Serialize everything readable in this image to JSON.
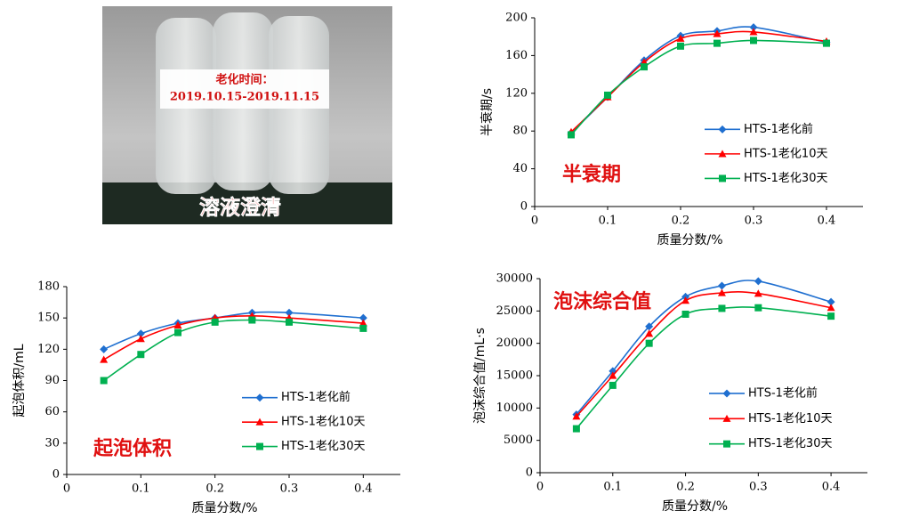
{
  "photo": {
    "label_title": "老化时间：",
    "label_dates": "2019.10.15-2019.11.15",
    "caption": "溶液澄清"
  },
  "chart_data": [
    {
      "type": "line",
      "annotation": "半衰期",
      "x_label": "质量分数/%",
      "y_label": "半衰期/s",
      "x": [
        0.05,
        0.1,
        0.15,
        0.2,
        0.25,
        0.3,
        0.4
      ],
      "xlim": [
        0,
        0.45
      ],
      "xticks": [
        0,
        0.1,
        0.2,
        0.3,
        0.4
      ],
      "ylim": [
        0,
        200
      ],
      "yticks": [
        0,
        40,
        80,
        120,
        160,
        200
      ],
      "grid": false,
      "legend": "lower right",
      "series": [
        {
          "name": "HTS-1老化前",
          "color": "#1f6fd0",
          "marker": "diamond",
          "values": [
            78,
            116,
            155,
            181,
            186,
            190,
            174
          ]
        },
        {
          "name": "HTS-1老化10天",
          "color": "#ff0000",
          "marker": "triangle",
          "values": [
            79,
            116,
            153,
            178,
            183,
            185,
            175
          ]
        },
        {
          "name": "HTS-1老化30天",
          "color": "#00b050",
          "marker": "square",
          "values": [
            76,
            118,
            148,
            170,
            173,
            176,
            173
          ]
        }
      ]
    },
    {
      "type": "line",
      "annotation": "起泡体积",
      "x_label": "质量分数/%",
      "y_label": "起泡体积/mL",
      "x": [
        0.05,
        0.1,
        0.15,
        0.2,
        0.25,
        0.3,
        0.4
      ],
      "xlim": [
        0,
        0.45
      ],
      "xticks": [
        0,
        0.1,
        0.2,
        0.3,
        0.4
      ],
      "ylim": [
        0,
        180
      ],
      "yticks": [
        0,
        30,
        60,
        90,
        120,
        150,
        180
      ],
      "grid": false,
      "legend": "lower right",
      "series": [
        {
          "name": "HTS-1老化前",
          "color": "#1f6fd0",
          "marker": "diamond",
          "values": [
            120,
            135,
            145,
            150,
            155,
            155,
            150
          ]
        },
        {
          "name": "HTS-1老化10天",
          "color": "#ff0000",
          "marker": "triangle",
          "values": [
            110,
            130,
            143,
            150,
            152,
            150,
            145
          ]
        },
        {
          "name": "HTS-1老化30天",
          "color": "#00b050",
          "marker": "square",
          "values": [
            90,
            115,
            136,
            146,
            148,
            146,
            140
          ]
        }
      ]
    },
    {
      "type": "line",
      "annotation": "泡沫综合值",
      "x_label": "质量分数/%",
      "y_label": "泡沫综合值/mL·s",
      "x": [
        0.05,
        0.1,
        0.15,
        0.2,
        0.25,
        0.3,
        0.4
      ],
      "xlim": [
        0,
        0.45
      ],
      "xticks": [
        0,
        0.1,
        0.2,
        0.3,
        0.4
      ],
      "ylim": [
        0,
        30000
      ],
      "yticks": [
        0,
        5000,
        10000,
        15000,
        20000,
        25000,
        30000
      ],
      "grid": false,
      "legend": "lower right",
      "series": [
        {
          "name": "HTS-1老化前",
          "color": "#1f6fd0",
          "marker": "diamond",
          "values": [
            9000,
            15700,
            22600,
            27200,
            28900,
            29600,
            26400
          ]
        },
        {
          "name": "HTS-1老化10天",
          "color": "#ff0000",
          "marker": "triangle",
          "values": [
            8700,
            15000,
            21500,
            26600,
            27800,
            27700,
            25500
          ]
        },
        {
          "name": "HTS-1老化30天",
          "color": "#00b050",
          "marker": "square",
          "values": [
            6800,
            13500,
            20000,
            24500,
            25400,
            25500,
            24200
          ]
        }
      ]
    }
  ]
}
